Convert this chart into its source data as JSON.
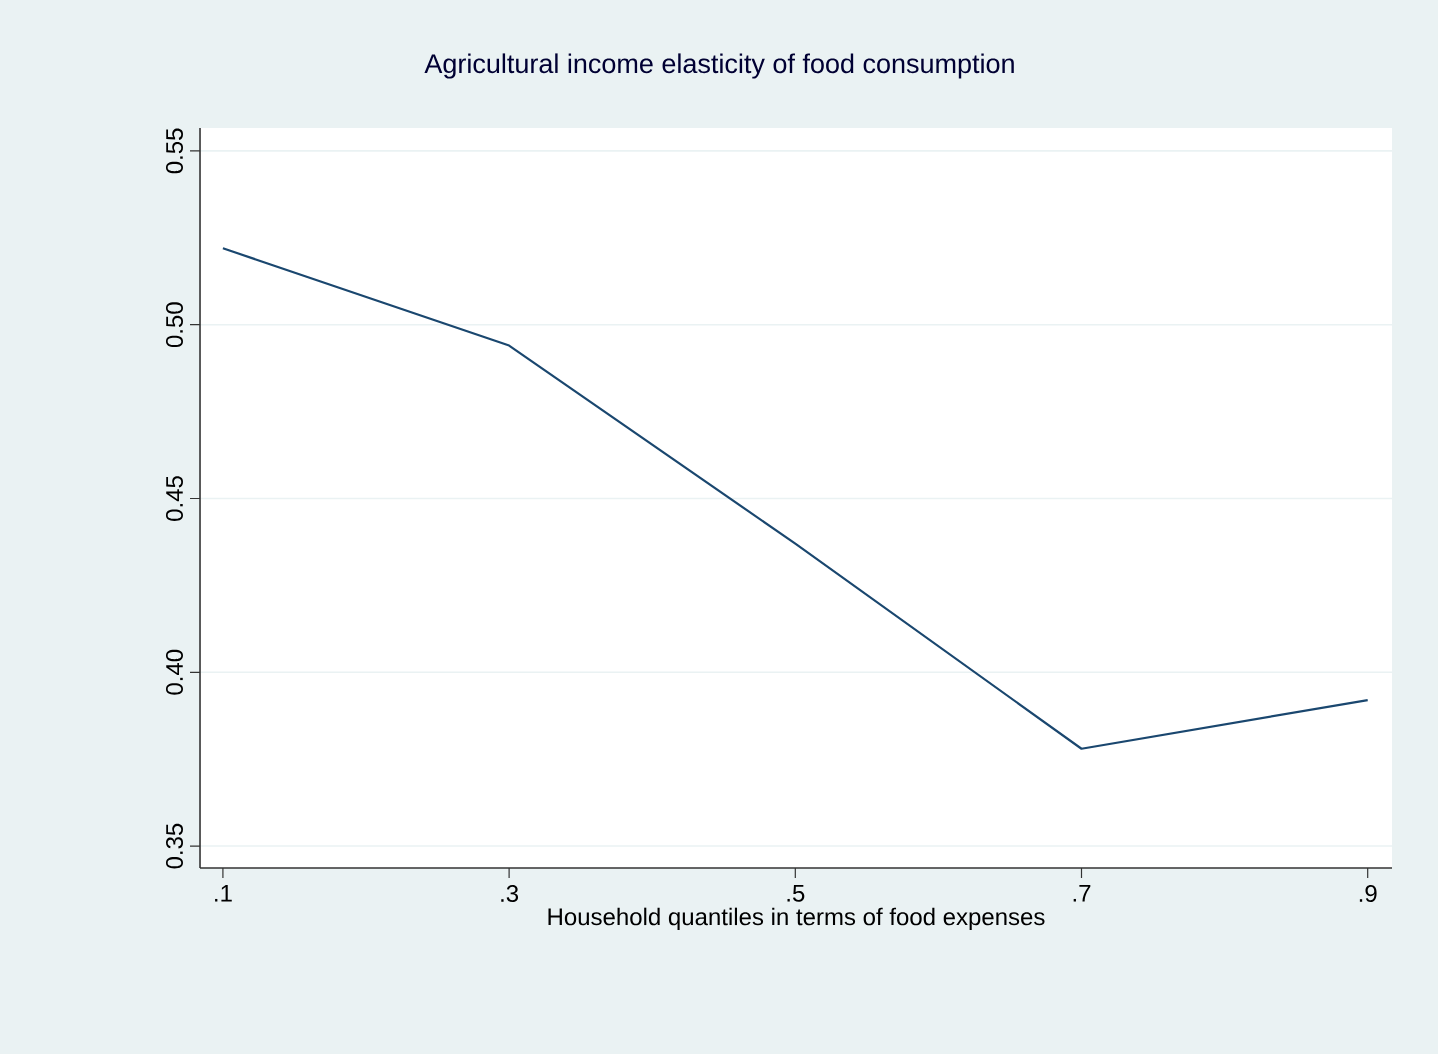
{
  "chart_data": {
    "type": "line",
    "title": "Agricultural income elasticity of food consumption",
    "xlabel": "Household quantiles in terms of food expenses",
    "x": [
      0.1,
      0.3,
      0.5,
      0.7,
      0.9
    ],
    "series": [
      {
        "color": "#1a476f",
        "values": [
          0.522,
          0.494,
          0.437,
          0.378,
          0.392
        ]
      }
    ],
    "xlim": [
      0.084,
      0.917
    ],
    "ylim": [
      0.3437,
      0.5566
    ],
    "xticks": [
      {
        "value": 0.1,
        "label": ".1"
      },
      {
        "value": 0.3,
        "label": ".3"
      },
      {
        "value": 0.5,
        "label": ".5"
      },
      {
        "value": 0.7,
        "label": ".7"
      },
      {
        "value": 0.9,
        "label": ".9"
      }
    ],
    "yticks": [
      {
        "value": 0.35,
        "label": "0.35"
      },
      {
        "value": 0.4,
        "label": "0.40"
      },
      {
        "value": 0.45,
        "label": "0.45"
      },
      {
        "value": 0.5,
        "label": "0.50"
      },
      {
        "value": 0.55,
        "label": "0.55"
      }
    ],
    "grid": "y"
  }
}
